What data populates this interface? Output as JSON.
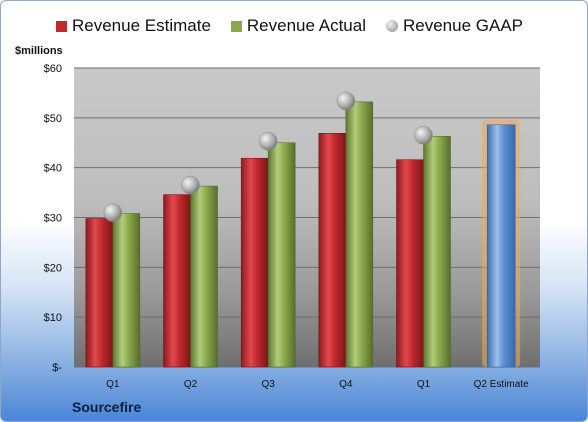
{
  "company": "Sourcefire",
  "unit_label": "$millions",
  "legend": [
    {
      "label": "Revenue Estimate",
      "color": "#c0282d",
      "marker": "square"
    },
    {
      "label": "Revenue Actual",
      "color": "#8aa84a",
      "marker": "square"
    },
    {
      "label": "Revenue GAAP",
      "color": "#a9a9a9",
      "marker": "circle"
    }
  ],
  "chart_data": {
    "type": "bar",
    "categories": [
      "Q1",
      "Q2",
      "Q3",
      "Q4",
      "Q1",
      "Q2 Estimate"
    ],
    "series": [
      {
        "name": "Revenue Estimate",
        "values": [
          29.8,
          34.6,
          41.9,
          46.9,
          41.6,
          null
        ],
        "color": "#c0282d"
      },
      {
        "name": "Revenue Actual",
        "values": [
          30.8,
          36.3,
          45.0,
          53.2,
          46.3,
          null
        ],
        "color": "#8aa84a"
      },
      {
        "name": "Revenue GAAP",
        "values": [
          31.0,
          36.5,
          45.3,
          53.4,
          46.5,
          null
        ],
        "color": "#a9a9a9",
        "marker": "circle"
      },
      {
        "name": "Q2 Estimate",
        "values": [
          null,
          null,
          null,
          null,
          null,
          48.6
        ],
        "color": "#5b8fd0",
        "highlight": "#f0a860"
      }
    ],
    "ylim": [
      0,
      60
    ],
    "yticks": [
      0,
      10,
      20,
      30,
      40,
      50,
      60
    ],
    "ytick_labels": [
      "$-",
      "$10",
      "$20",
      "$30",
      "$40",
      "$50",
      "$60"
    ],
    "grid": true
  }
}
